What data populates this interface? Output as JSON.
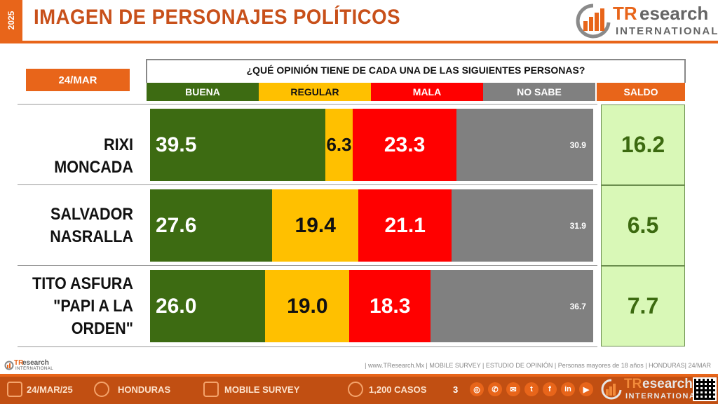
{
  "header": {
    "year": "2025",
    "title": "IMAGEN DE PERSONAJES POLÍTICOS",
    "logo_tr": "TR",
    "logo_rest": "esearch",
    "logo_sub": "INTERNATIONAL"
  },
  "date_tag": "24/MAR",
  "question": "¿QUÉ OPINIÓN TIENE DE CADA UNA DE LAS SIGUIENTES PERSONAS?",
  "legend": {
    "buena": "BUENA",
    "regular": "REGULAR",
    "mala": "MALA",
    "no_sabe": "NO SABE",
    "saldo": "SALDO"
  },
  "colors": {
    "buena": "#3d6b12",
    "regular": "#ffc000",
    "mala": "#ff0000",
    "no_sabe": "#808080",
    "saldo_header": "#e8651a",
    "saldo_fill": "#d9f8b7"
  },
  "chart_data": {
    "type": "bar",
    "stacked": true,
    "orientation": "horizontal",
    "categories": [
      "RIXI MONCADA",
      "SALVADOR NASRALLA",
      "TITO ASFURA \"PAPI A LA ORDEN\""
    ],
    "name_lines": [
      [
        "RIXI MONCADA"
      ],
      [
        "SALVADOR",
        "NASRALLA"
      ],
      [
        "TITO ASFURA",
        "\"PAPI A LA",
        "ORDEN\""
      ]
    ],
    "series": [
      {
        "name": "BUENA",
        "values": [
          "39.5",
          "27.6",
          "26.0"
        ]
      },
      {
        "name": "REGULAR",
        "values": [
          "6.3",
          "19.4",
          "19.0"
        ]
      },
      {
        "name": "MALA",
        "values": [
          "23.3",
          "21.1",
          "18.3"
        ]
      },
      {
        "name": "NO SABE",
        "values": [
          "30.9",
          "31.9",
          "36.7"
        ]
      }
    ],
    "saldo": [
      "16.2",
      "6.5",
      "7.7"
    ]
  },
  "footer": {
    "logo_tr": "TR",
    "logo_rest": "esearch",
    "logo_sub": "INTERNATIONAL",
    "note": "| www.TResearch.Mx | MOBILE SURVEY | ESTUDIO DE OPINIÓN | Personas mayores de 18 años | HONDURAS| 24/MAR",
    "date": "24/MAR/25",
    "country": "HONDURAS",
    "survey": "MOBILE SURVEY",
    "cases": "1,200 CASOS",
    "page": "3",
    "brand_tr": "TR",
    "brand_rest": "esearch",
    "brand_sub": "INTERNATIONAL",
    "social_icons": [
      "globe-icon",
      "whatsapp-icon",
      "mail-icon",
      "twitter-icon",
      "facebook-icon",
      "linkedin-icon",
      "youtube-icon"
    ]
  }
}
